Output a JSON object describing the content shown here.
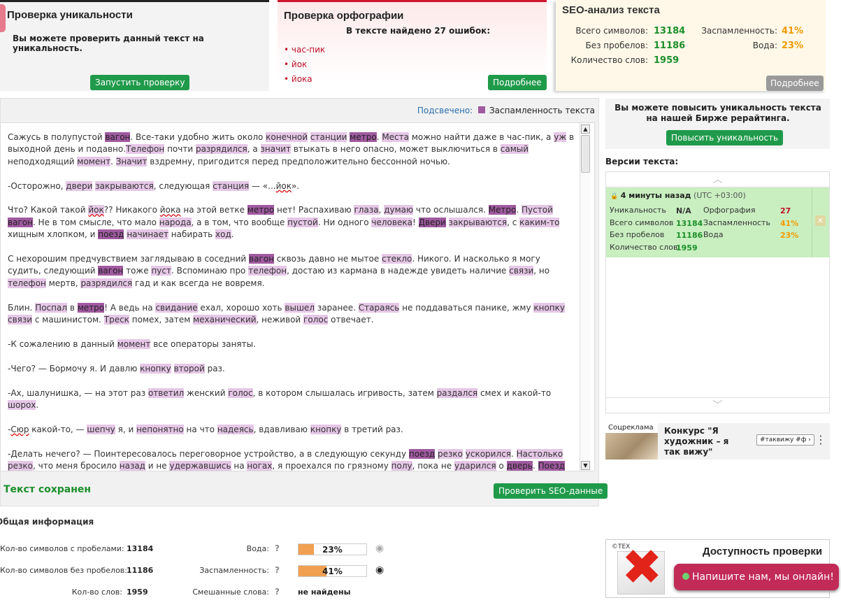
{
  "uniq": {
    "title": "Проверка уникальности",
    "desc": "Вы можете проверить данный текст на уникальность.",
    "button": "Запустить проверку"
  },
  "spell": {
    "title": "Проверка орфографии",
    "found": "В тексте найдено 27 ошибок:",
    "errors": [
      "час-пик",
      "йок",
      "йока"
    ],
    "button": "Подробнее"
  },
  "seo": {
    "title": "SEO-анализ текста",
    "rows": [
      {
        "label": "Всего символов:",
        "value": "13184"
      },
      {
        "label": "Без пробелов:",
        "value": "11186"
      },
      {
        "label": "Количество слов:",
        "value": "1959"
      }
    ],
    "rows2": [
      {
        "label": "Заспамленность:",
        "value": "41%"
      },
      {
        "label": "Вода:",
        "value": "23%"
      }
    ],
    "button": "Подробнее"
  },
  "highlight": {
    "label": "Подсвечено:",
    "legend": "Заспамленность текста"
  },
  "text_saved": "Текст сохранен",
  "seo_check_button": "Проверить SEO-данные",
  "boost": {
    "text": "Вы можете повысить уникальность текста на нашей Бирже рерайтинга.",
    "button": "Повысить уникальность"
  },
  "versions": {
    "title": "Версии текста:",
    "time": "4 минуты назад",
    "tz": "(UTC +03:00)",
    "left": [
      {
        "label": "Уникальность",
        "value": "N/A"
      },
      {
        "label": "Всего символов",
        "value": "13184"
      },
      {
        "label": "Без пробелов",
        "value": "11186"
      },
      {
        "label": "Количество слов",
        "value": "1959"
      }
    ],
    "right": [
      {
        "label": "Орфография",
        "value": "27"
      },
      {
        "label": "Заспамленность",
        "value": "41%"
      },
      {
        "label": "Вода",
        "value": "23%"
      }
    ]
  },
  "ad": {
    "label": "Соцреклама",
    "title": "Конкурс \"Я художник – я так вижу\"",
    "button": "#таквижу #ф"
  },
  "general": {
    "title": "Общая информация",
    "rows": [
      {
        "label": "Кол-во символов с пробелами:",
        "value": "13184"
      },
      {
        "label": "Кол-во символов без пробелов:",
        "value": "11186"
      },
      {
        "label": "Кол-во слов:",
        "value": "1959"
      }
    ],
    "metrics": [
      {
        "label": "Вода:",
        "value": "23%",
        "fraction": 0.23
      },
      {
        "label": "Заспамленность:",
        "value": "41%",
        "fraction": 0.41
      },
      {
        "label": "Смешанные слова:",
        "value": "не найдены"
      }
    ]
  },
  "avail": {
    "title": "Доступность проверки",
    "logo": "©ТЕХ"
  },
  "chat": "Напишите нам, мы онлайн!",
  "colors": {
    "green": "#1f9a4a",
    "spam_light": "#e6c7e6",
    "spam_dark": "#a05aa0",
    "chat": "#c22a58"
  }
}
